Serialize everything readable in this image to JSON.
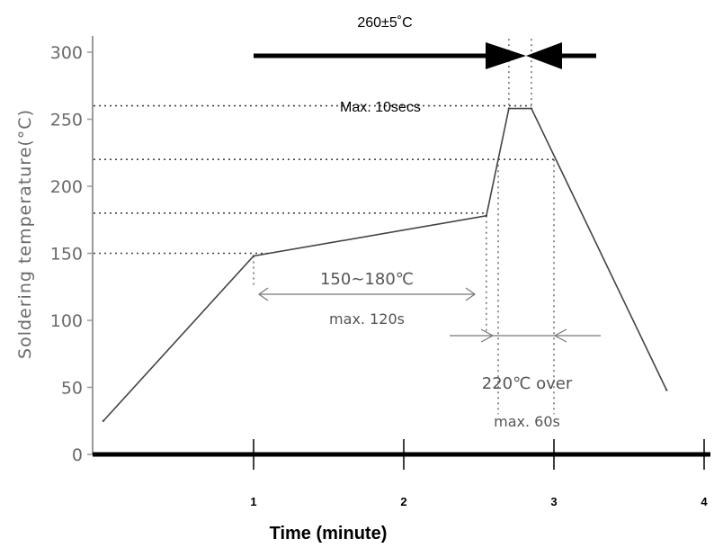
{
  "chart_data": {
    "type": "line",
    "title": "",
    "ylabel": "Soldering temperature(°C)",
    "xlabel": "Time (minute)",
    "ylim": [
      0,
      310
    ],
    "xlim": [
      0,
      4
    ],
    "y_ticks": [
      "0",
      "50",
      "100",
      "150",
      "200",
      "250",
      "300"
    ],
    "x_ticks": [
      "1",
      "2",
      "3",
      "4"
    ],
    "grid": false,
    "series": [
      {
        "x": [
          0,
          1.0,
          2.55,
          2.7,
          2.85,
          3.75
        ],
        "y": [
          25,
          148,
          178,
          258,
          258,
          48
        ]
      }
    ],
    "reference_lines": [
      150,
      180,
      220,
      260
    ],
    "annotations": {
      "peak_temp": "260±5˚C",
      "peak_time": "Max. 10secs",
      "preheat_range": "150∼180℃",
      "preheat_time": "max. 120s",
      "over220_line1": "220℃ over",
      "over220_line2": "max. 60s"
    }
  }
}
